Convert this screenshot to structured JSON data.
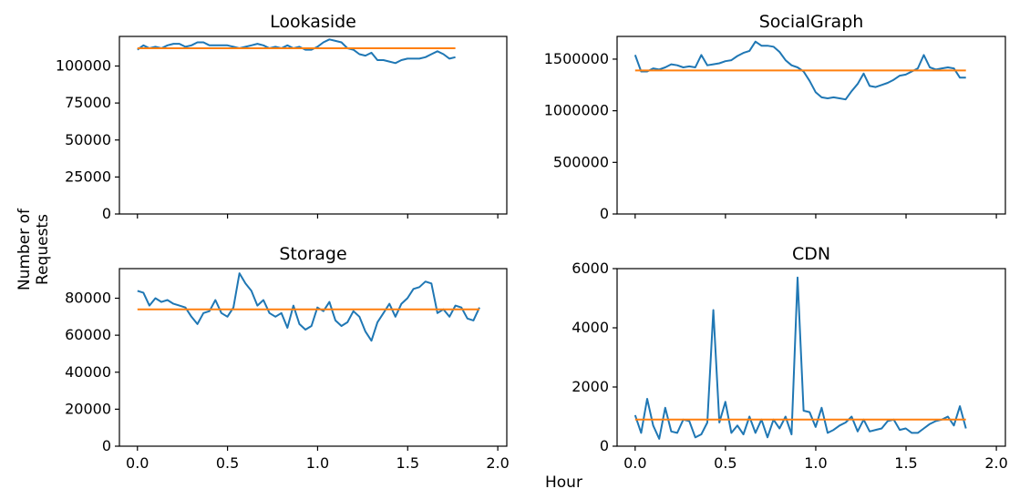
{
  "figure": {
    "xlabel": "Hour",
    "ylabel": "Number of Requests"
  },
  "colors": {
    "observed": "#1f77b4",
    "predicted": "#ff7f0e"
  },
  "chart_data": [
    {
      "type": "line",
      "title": "Lookaside",
      "xlim": [
        -0.1,
        2.05
      ],
      "ylim": [
        0,
        120000
      ],
      "yticks": [
        0,
        25000,
        50000,
        75000,
        100000
      ],
      "ytick_labels": [
        "0",
        "25000",
        "50000",
        "75000",
        "100000"
      ],
      "xticks": [
        0,
        0.5,
        1,
        1.5,
        2
      ],
      "xtick_labels": [],
      "x_step": 0.0333,
      "series": [
        {
          "values": [
            111000,
            114000,
            112000,
            113000,
            112000,
            114000,
            115000,
            115000,
            113000,
            114000,
            116000,
            116000,
            114000,
            114000,
            114000,
            114000,
            113000,
            112000,
            113000,
            114000,
            115000,
            114000,
            112000,
            113000,
            112000,
            114000,
            112000,
            113000,
            111000,
            111000,
            113000,
            116000,
            118000,
            117000,
            116000,
            112000,
            111000,
            108000,
            107000,
            109000,
            104000,
            104000,
            103000,
            102000,
            104000,
            105000,
            105000,
            105000,
            106000,
            108000,
            110000,
            108000,
            105000,
            106000
          ]
        },
        {
          "values": [
            112000,
            112000,
            112000,
            112000,
            112000,
            112000,
            112000,
            112000,
            112000,
            112000,
            112000,
            112000,
            112000,
            112000,
            112000,
            112000,
            112000,
            112000,
            112000,
            112000,
            112000,
            112000,
            112000,
            112000,
            112000,
            112000,
            112000,
            112000,
            112000,
            112000,
            112000,
            112000,
            112000,
            112000,
            112000,
            112000,
            112000,
            112000,
            112000,
            112000,
            112000,
            112000,
            112000,
            112000,
            112000,
            112000,
            112000,
            112000,
            112000,
            112000,
            112000,
            112000,
            112000,
            112000
          ]
        }
      ]
    },
    {
      "type": "line",
      "title": "SocialGraph",
      "xlim": [
        -0.1,
        2.05
      ],
      "ylim": [
        0,
        1720000
      ],
      "yticks": [
        0,
        500000,
        1000000,
        1500000
      ],
      "ytick_labels": [
        "0",
        "500000",
        "1000000",
        "1500000"
      ],
      "xticks": [
        0,
        0.5,
        1,
        1.5,
        2
      ],
      "xtick_labels": [],
      "x_step": 0.0333,
      "series": [
        {
          "values": [
            1540000,
            1380000,
            1380000,
            1410000,
            1400000,
            1420000,
            1450000,
            1440000,
            1420000,
            1430000,
            1420000,
            1540000,
            1440000,
            1450000,
            1460000,
            1480000,
            1490000,
            1530000,
            1560000,
            1580000,
            1670000,
            1630000,
            1630000,
            1620000,
            1570000,
            1490000,
            1440000,
            1420000,
            1380000,
            1290000,
            1180000,
            1130000,
            1120000,
            1130000,
            1120000,
            1110000,
            1190000,
            1260000,
            1360000,
            1240000,
            1230000,
            1250000,
            1270000,
            1300000,
            1340000,
            1350000,
            1380000,
            1410000,
            1540000,
            1420000,
            1400000,
            1410000,
            1420000,
            1410000,
            1320000,
            1320000
          ]
        },
        {
          "values": [
            1390000,
            1390000,
            1390000,
            1390000,
            1390000,
            1390000,
            1390000,
            1390000,
            1390000,
            1390000,
            1390000,
            1390000,
            1390000,
            1390000,
            1390000,
            1390000,
            1390000,
            1390000,
            1390000,
            1390000,
            1390000,
            1390000,
            1390000,
            1390000,
            1390000,
            1390000,
            1390000,
            1390000,
            1390000,
            1390000,
            1390000,
            1390000,
            1390000,
            1390000,
            1390000,
            1390000,
            1390000,
            1390000,
            1390000,
            1390000,
            1390000,
            1390000,
            1390000,
            1390000,
            1390000,
            1390000,
            1390000,
            1390000,
            1390000,
            1390000,
            1390000,
            1390000,
            1390000,
            1390000,
            1390000,
            1390000
          ]
        }
      ]
    },
    {
      "type": "line",
      "title": "Storage",
      "xlim": [
        -0.1,
        2.05
      ],
      "ylim": [
        0,
        96000
      ],
      "yticks": [
        0,
        20000,
        40000,
        60000,
        80000
      ],
      "ytick_labels": [
        "0",
        "20000",
        "40000",
        "60000",
        "80000"
      ],
      "xticks": [
        0,
        0.5,
        1,
        1.5,
        2
      ],
      "xtick_labels": [
        "0.0",
        "0.5",
        "1.0",
        "1.5",
        "2.0"
      ],
      "x_step": 0.0333,
      "series": [
        {
          "values": [
            84000,
            83000,
            76000,
            80000,
            78000,
            79000,
            77000,
            76000,
            75000,
            70000,
            66000,
            72000,
            73000,
            79000,
            72000,
            70000,
            75000,
            93500,
            88000,
            84000,
            76000,
            79000,
            72000,
            70000,
            72000,
            64000,
            76000,
            66000,
            63000,
            65000,
            75000,
            73000,
            78000,
            68000,
            65000,
            67000,
            73000,
            70000,
            62000,
            57000,
            67000,
            72000,
            77000,
            70000,
            77000,
            80000,
            85000,
            86000,
            89000,
            88000,
            72000,
            74000,
            70000,
            76000,
            75000,
            69000,
            68000,
            75000
          ]
        },
        {
          "values": [
            74000,
            74000,
            74000,
            74000,
            74000,
            74000,
            74000,
            74000,
            74000,
            74000,
            74000,
            74000,
            74000,
            74000,
            74000,
            74000,
            74000,
            74000,
            74000,
            74000,
            74000,
            74000,
            74000,
            74000,
            74000,
            74000,
            74000,
            74000,
            74000,
            74000,
            74000,
            74000,
            74000,
            74000,
            74000,
            74000,
            74000,
            74000,
            74000,
            74000,
            74000,
            74000,
            74000,
            74000,
            74000,
            74000,
            74000,
            74000,
            74000,
            74000,
            74000,
            74000,
            74000,
            74000,
            74000,
            74000,
            74000,
            74000
          ]
        }
      ]
    },
    {
      "type": "line",
      "title": "CDN",
      "xlim": [
        -0.1,
        2.05
      ],
      "ylim": [
        0,
        6000
      ],
      "yticks": [
        0,
        2000,
        4000,
        6000
      ],
      "ytick_labels": [
        "0",
        "2000",
        "4000",
        "6000"
      ],
      "xticks": [
        0,
        0.5,
        1,
        1.5,
        2
      ],
      "xtick_labels": [
        "0.0",
        "0.5",
        "1.0",
        "1.5",
        "2.0"
      ],
      "x_step": 0.0333,
      "series": [
        {
          "values": [
            1050,
            450,
            1600,
            700,
            250,
            1300,
            500,
            450,
            900,
            850,
            300,
            400,
            800,
            4600,
            800,
            1500,
            450,
            700,
            400,
            1000,
            450,
            900,
            300,
            900,
            600,
            1000,
            400,
            5700,
            1200,
            1150,
            650,
            1300,
            450,
            550,
            700,
            800,
            1000,
            500,
            900,
            500,
            550,
            600,
            850,
            900,
            550,
            600,
            450,
            450,
            600,
            750,
            850,
            900,
            1000,
            700,
            1350,
            600
          ]
        },
        {
          "values": [
            900,
            900,
            900,
            900,
            900,
            900,
            900,
            900,
            900,
            900,
            900,
            900,
            900,
            900,
            900,
            900,
            900,
            900,
            900,
            900,
            900,
            900,
            900,
            900,
            900,
            900,
            900,
            900,
            900,
            900,
            900,
            900,
            900,
            900,
            900,
            900,
            900,
            900,
            900,
            900,
            900,
            900,
            900,
            900,
            900,
            900,
            900,
            900,
            900,
            900,
            900,
            900,
            900,
            900,
            900,
            900
          ]
        }
      ]
    }
  ]
}
